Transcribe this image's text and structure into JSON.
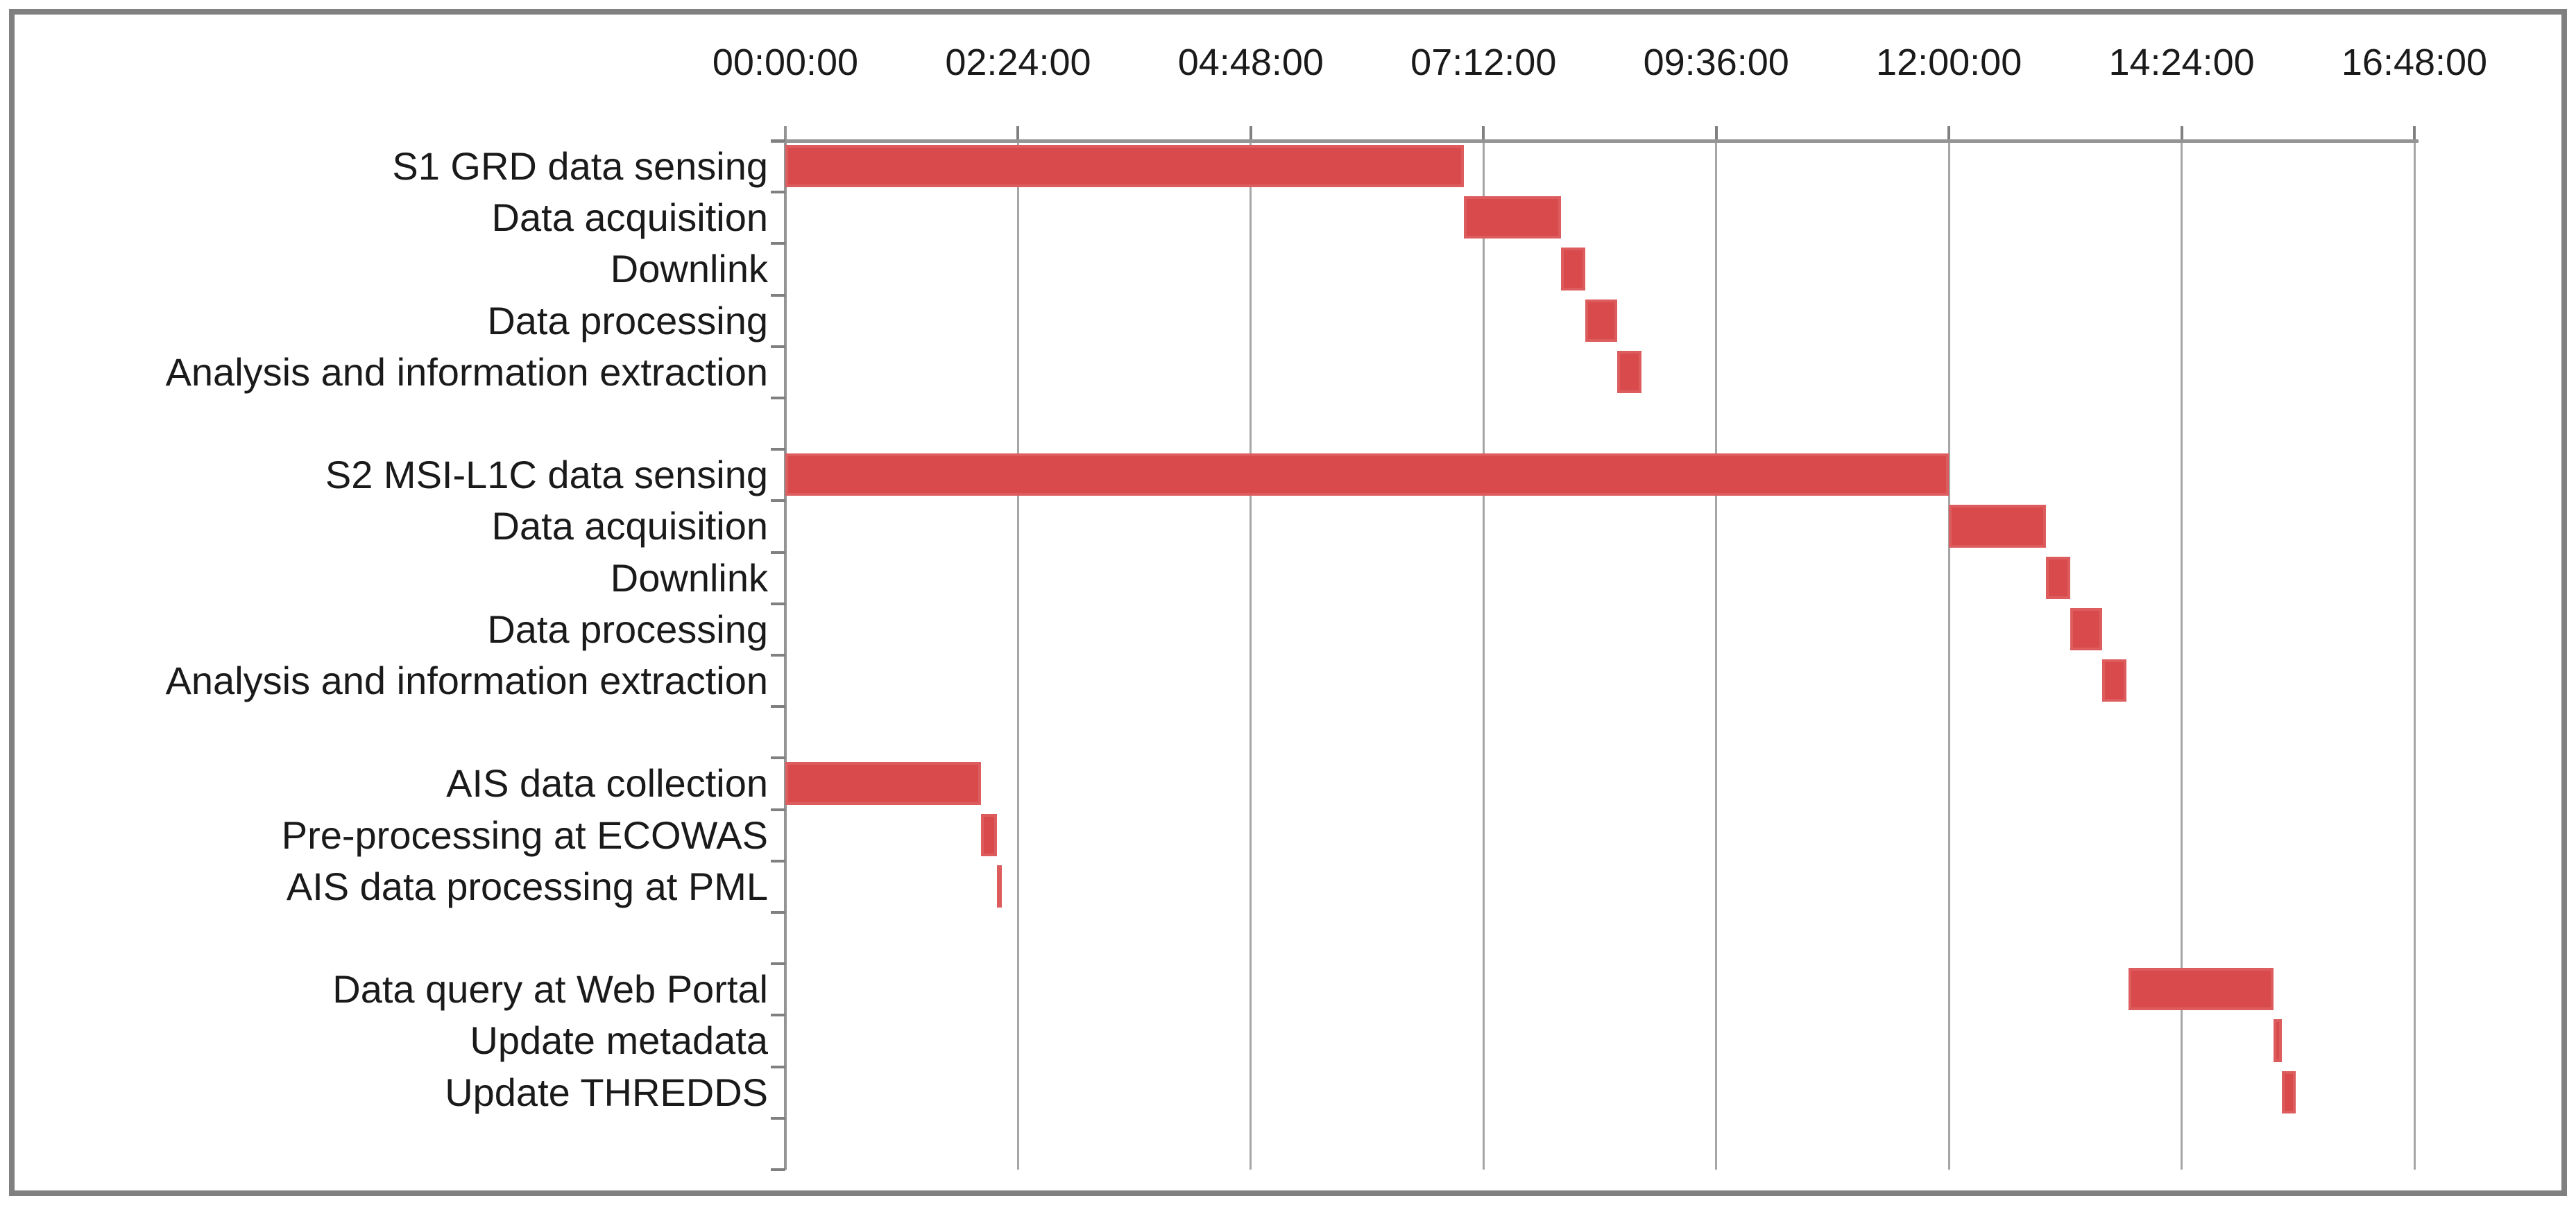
{
  "chart_data": {
    "type": "bar",
    "subtype": "gantt-horizontal-timeline",
    "title": "",
    "x_axis": {
      "position": "top",
      "tick_labels": [
        "00:00:00",
        "02:24:00",
        "04:48:00",
        "07:12:00",
        "09:36:00",
        "12:00:00",
        "14:24:00",
        "16:48:00"
      ],
      "min_hours": 0,
      "max_hours": 16.8,
      "tick_interval_hours": 2.4
    },
    "grid": "vertical-only",
    "legend": null,
    "bar_color": "#d94a4c",
    "gridline_color": "#a6a6a6",
    "axis_color": "#949494",
    "rows": [
      {
        "label": "S1 GRD data sensing",
        "start_hours": 0,
        "end_hours": 7.0
      },
      {
        "label": "Data acquisition",
        "start_hours": 7.0,
        "end_hours": 8.0
      },
      {
        "label": "Downlink",
        "start_hours": 8.0,
        "end_hours": 8.25
      },
      {
        "label": "Data processing",
        "start_hours": 8.25,
        "end_hours": 8.58
      },
      {
        "label": "Analysis and information extraction",
        "start_hours": 8.58,
        "end_hours": 8.83
      },
      {
        "label": "",
        "start_hours": null,
        "end_hours": null
      },
      {
        "label": "S2 MSI-L1C data sensing",
        "start_hours": 0,
        "end_hours": 12.0
      },
      {
        "label": "Data acquisition",
        "start_hours": 12.0,
        "end_hours": 13.0
      },
      {
        "label": "Downlink",
        "start_hours": 13.0,
        "end_hours": 13.25
      },
      {
        "label": "Data processing",
        "start_hours": 13.25,
        "end_hours": 13.58
      },
      {
        "label": "Analysis and information extraction",
        "start_hours": 13.58,
        "end_hours": 13.83
      },
      {
        "label": "",
        "start_hours": null,
        "end_hours": null
      },
      {
        "label": "AIS data collection",
        "start_hours": 0,
        "end_hours": 2.02
      },
      {
        "label": "Pre-processing at ECOWAS",
        "start_hours": 2.02,
        "end_hours": 2.18
      },
      {
        "label": "AIS data processing at PML",
        "start_hours": 2.18,
        "end_hours": 2.23
      },
      {
        "label": "",
        "start_hours": null,
        "end_hours": null
      },
      {
        "label": "Data query at Web Portal",
        "start_hours": 13.85,
        "end_hours": 15.35
      },
      {
        "label": "Update metadata",
        "start_hours": 15.35,
        "end_hours": 15.43
      },
      {
        "label": "Update THREDDS",
        "start_hours": 15.43,
        "end_hours": 15.58
      },
      {
        "label": "",
        "start_hours": null,
        "end_hours": null
      }
    ]
  }
}
